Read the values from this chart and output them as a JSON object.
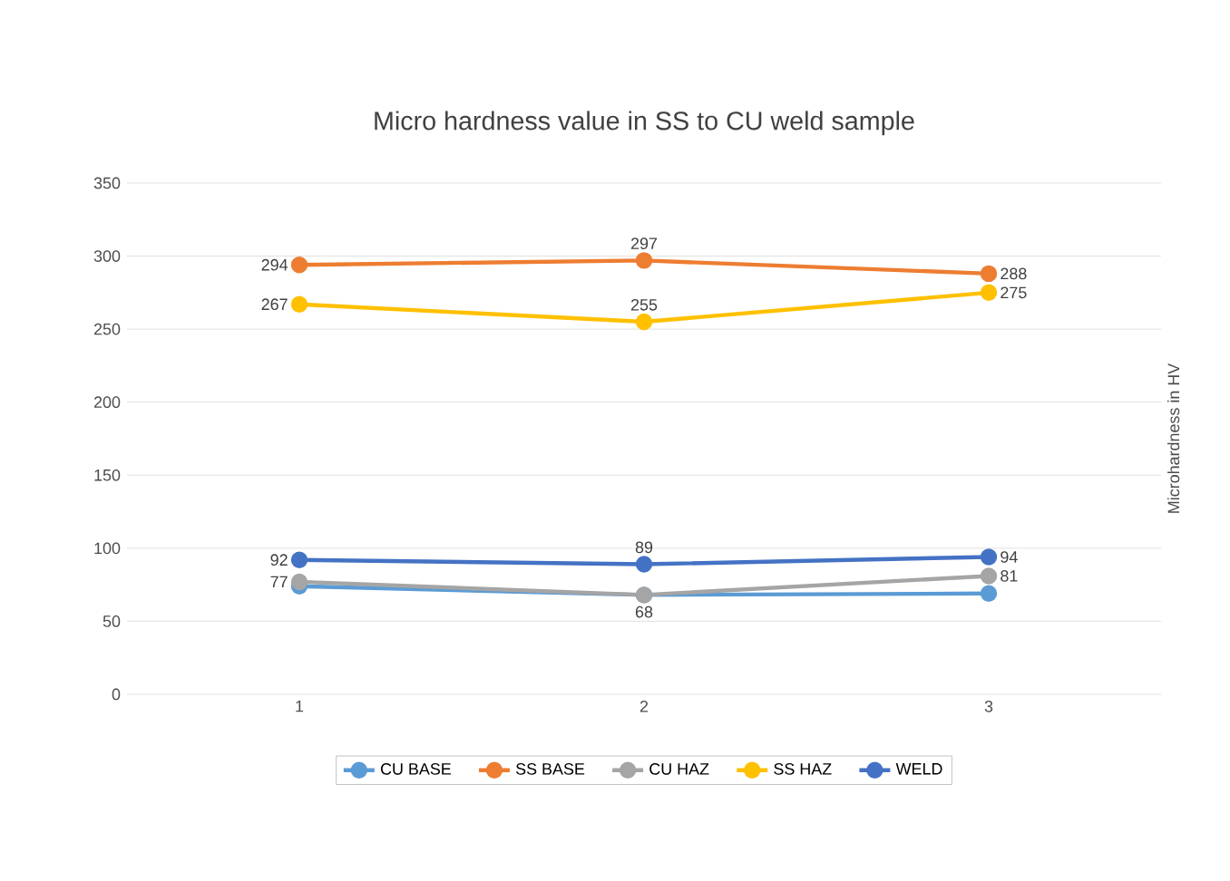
{
  "chart_data": {
    "type": "line",
    "title": "Micro hardness value in SS to CU weld sample",
    "ylabel": "Microhardness in HV",
    "categories": [
      "1",
      "2",
      "3"
    ],
    "series": [
      {
        "name": "CU BASE",
        "color": "#5b9bd5",
        "values": [
          74,
          68,
          69
        ]
      },
      {
        "name": "SS BASE",
        "color": "#ed7d31",
        "values": [
          294,
          297,
          288
        ],
        "value_labels": [
          "294",
          "297",
          "288"
        ]
      },
      {
        "name": "CU HAZ",
        "color": "#a5a5a5",
        "values": [
          77,
          68,
          81
        ],
        "value_labels": [
          "77",
          "68",
          "81"
        ]
      },
      {
        "name": "SS HAZ",
        "color": "#ffc000",
        "values": [
          267,
          255,
          275
        ],
        "value_labels": [
          "267",
          "255",
          "275"
        ]
      },
      {
        "name": "WELD",
        "color": "#4472c4",
        "values": [
          92,
          89,
          94
        ],
        "value_labels": [
          "92",
          "89",
          "94"
        ]
      }
    ],
    "ylim": [
      0,
      350
    ],
    "yticks": [
      0,
      50,
      100,
      150,
      200,
      250,
      300,
      350
    ],
    "grid": "y",
    "legend": "bottom",
    "marker": "circle",
    "line_style": "solid"
  }
}
